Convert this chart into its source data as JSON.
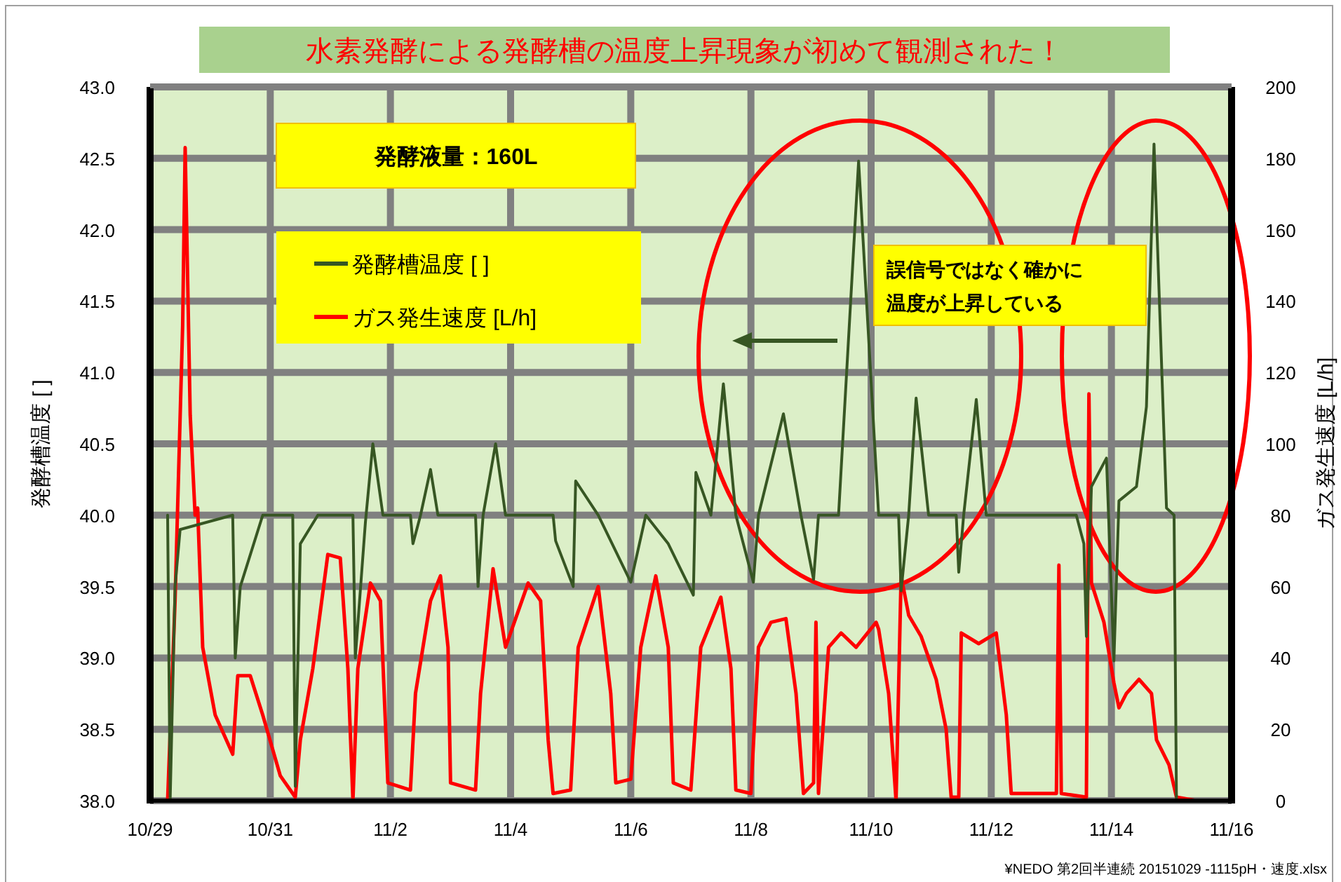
{
  "chart_data": {
    "type": "line",
    "title": "水素発酵による発酵槽の温度上昇現象が初めて観測された！",
    "ylabel": "発酵槽温度 [ ]",
    "y2label": "ガス発生速度 [L/h]",
    "annotations": [
      "発酵液量：160L",
      "誤信号ではなく確かに温度が上昇している",
      "¥NEDO 第2回半連続 20151029 -1115pH・速度.xlsx"
    ],
    "xlim": [
      "2015-10-29",
      "2015-11-16"
    ],
    "xticks": [
      {
        "value": "2015-10-29",
        "label": "10/29"
      },
      {
        "value": "2015-10-31",
        "label": "10/31"
      },
      {
        "value": "2015-11-02",
        "label": "11/2"
      },
      {
        "value": "2015-11-04",
        "label": "11/4"
      },
      {
        "value": "2015-11-06",
        "label": "11/6"
      },
      {
        "value": "2015-11-08",
        "label": "11/8"
      },
      {
        "value": "2015-11-10",
        "label": "11/10"
      },
      {
        "value": "2015-11-12",
        "label": "11/12"
      },
      {
        "value": "2015-11-14",
        "label": "11/14"
      },
      {
        "value": "2015-11-16",
        "label": "11/16"
      }
    ],
    "ylim": [
      38,
      43
    ],
    "yticks": [
      {
        "value": 38,
        "label": "38.0"
      },
      {
        "value": 38.5,
        "label": "38.5"
      },
      {
        "value": 39,
        "label": "39.0"
      },
      {
        "value": 39.5,
        "label": "39.5"
      },
      {
        "value": 40,
        "label": "40.0"
      },
      {
        "value": 40.5,
        "label": "40.5"
      },
      {
        "value": 41,
        "label": "41.0"
      },
      {
        "value": 41.5,
        "label": "41.5"
      },
      {
        "value": 42,
        "label": "42.0"
      },
      {
        "value": 42.5,
        "label": "42.5"
      },
      {
        "value": 43,
        "label": "43.0"
      }
    ],
    "y2lim": [
      0,
      200
    ],
    "y2ticks": [
      0,
      20,
      40,
      60,
      80,
      100,
      120,
      140,
      160,
      180,
      200
    ],
    "grid": true,
    "legend": "top left",
    "series": [
      {
        "name": "発酵槽温度 [ ]",
        "color": "#375623",
        "x": [
          "2015-10-29T07:00",
          "2015-10-29T08:00",
          "2015-10-29T10:00",
          "2015-10-29T12:00",
          "2015-10-30T09:00",
          "2015-10-30T10:00",
          "2015-10-30T12:00",
          "2015-10-30T21:00",
          "2015-10-31T09:00",
          "2015-10-31T10:00",
          "2015-10-31T12:00",
          "2015-10-31T19:00",
          "2015-11-01T09:00",
          "2015-11-01T10:00",
          "2015-11-01T14:00",
          "2015-11-01T17:00",
          "2015-11-01T21:00",
          "2015-11-02T08:00",
          "2015-11-02T09:00",
          "2015-11-02T12:00",
          "2015-11-02T16:00",
          "2015-11-02T19:00",
          "2015-11-03T10:00",
          "2015-11-03T11:00",
          "2015-11-03T13:00",
          "2015-11-03T18:00",
          "2015-11-03T22:00",
          "2015-11-04T17:00",
          "2015-11-04T18:00",
          "2015-11-05T01:00",
          "2015-11-05T02:00",
          "2015-11-05T11:00",
          "2015-11-06T00:00",
          "2015-11-06T06:00",
          "2015-11-06T15:00",
          "2015-11-07T01:00",
          "2015-11-07T02:00",
          "2015-11-07T08:00",
          "2015-11-07T13:00",
          "2015-11-07T18:00",
          "2015-11-08T01:00",
          "2015-11-08T03:00",
          "2015-11-08T13:00",
          "2015-11-08T20:00",
          "2015-11-09T01:00",
          "2015-11-09T03:00",
          "2015-11-09T11:00",
          "2015-11-09T19:00",
          "2015-11-10T03:00",
          "2015-11-10T11:00",
          "2015-11-10T12:00",
          "2015-11-10T15:00",
          "2015-11-10T18:00",
          "2015-11-10T23:00",
          "2015-11-11T10:00",
          "2015-11-11T11:00",
          "2015-11-11T13:00",
          "2015-11-11T18:00",
          "2015-11-11T22:00",
          "2015-11-13T10:00",
          "2015-11-13T13:00",
          "2015-11-13T14:00",
          "2015-11-13T16:00",
          "2015-11-13T22:00",
          "2015-11-14T01:00",
          "2015-11-14T03:00",
          "2015-11-14T10:00",
          "2015-11-14T14:00",
          "2015-11-14T17:00",
          "2015-11-14T22:00",
          "2015-11-15T01:00",
          "2015-11-15T02:00"
        ],
        "values": [
          40.0,
          38.0,
          39.5,
          39.9,
          40.0,
          39.0,
          39.5,
          40.0,
          40.0,
          38.1,
          39.8,
          40.0,
          40.0,
          39.0,
          39.95,
          40.5,
          40.0,
          40.0,
          39.8,
          40.0,
          40.32,
          40.0,
          40.0,
          39.5,
          40.0,
          40.5,
          40.0,
          40.0,
          39.82,
          39.5,
          40.24,
          40.0,
          39.53,
          40.0,
          39.8,
          39.44,
          40.3,
          40.0,
          40.92,
          40.0,
          39.53,
          40.0,
          40.71,
          40.0,
          39.55,
          40.0,
          40.0,
          42.48,
          40.0,
          40.0,
          39.47,
          40.0,
          40.82,
          40.0,
          40.0,
          39.6,
          40.0,
          40.81,
          40.0,
          40.0,
          39.8,
          39.15,
          40.2,
          40.4,
          38.98,
          40.1,
          40.2,
          40.76,
          42.6,
          40.05,
          40.0,
          38.0
        ]
      },
      {
        "name": "ガス発生速度 [L/h]",
        "color": "#ff0000",
        "axis": "y2",
        "x": [
          "2015-10-29T07:00",
          "2015-10-29T10:00",
          "2015-10-29T13:00",
          "2015-10-29T14:00",
          "2015-10-29T16:00",
          "2015-10-29T18:00",
          "2015-10-29T19:00",
          "2015-10-29T21:00",
          "2015-10-30T02:00",
          "2015-10-30T09:00",
          "2015-10-30T11:00",
          "2015-10-30T16:00",
          "2015-10-30T21:00",
          "2015-10-31T04:00",
          "2015-10-31T10:00",
          "2015-10-31T12:00",
          "2015-10-31T17:00",
          "2015-10-31T23:00",
          "2015-11-01T04:00",
          "2015-11-01T07:00",
          "2015-11-01T09:00",
          "2015-11-01T11:00",
          "2015-11-01T16:00",
          "2015-11-01T20:00",
          "2015-11-01T23:00",
          "2015-11-02T08:00",
          "2015-11-02T10:00",
          "2015-11-02T16:00",
          "2015-11-02T20:00",
          "2015-11-02T23:00",
          "2015-11-03T00:00",
          "2015-11-03T10:00",
          "2015-11-03T12:00",
          "2015-11-03T17:00",
          "2015-11-03T22:00",
          "2015-11-04T07:00",
          "2015-11-04T12:00",
          "2015-11-04T15:00",
          "2015-11-04T17:00",
          "2015-11-05T00:00",
          "2015-11-05T03:00",
          "2015-11-05T11:00",
          "2015-11-05T16:00",
          "2015-11-05T18:00",
          "2015-11-06T00:00",
          "2015-11-06T04:00",
          "2015-11-06T10:00",
          "2015-11-06T15:00",
          "2015-11-06T17:00",
          "2015-11-07T00:00",
          "2015-11-07T04:00",
          "2015-11-07T12:00",
          "2015-11-07T16:00",
          "2015-11-07T18:00",
          "2015-11-08T00:00",
          "2015-11-08T03:00",
          "2015-11-08T08:00",
          "2015-11-08T14:00",
          "2015-11-08T18:00",
          "2015-11-08T21:00",
          "2015-11-09T01:00",
          "2015-11-09T02:00",
          "2015-11-09T03:00",
          "2015-11-09T07:00",
          "2015-11-09T12:00",
          "2015-11-09T18:00",
          "2015-11-10T02:00",
          "2015-11-10T03:00",
          "2015-11-10T07:00",
          "2015-11-10T10:00",
          "2015-11-10T12:00",
          "2015-11-10T15:00",
          "2015-11-10T20:00",
          "2015-11-11T02:00",
          "2015-11-11T06:00",
          "2015-11-11T08:00",
          "2015-11-11T11:00",
          "2015-11-11T12:00",
          "2015-11-11T19:00",
          "2015-11-12T02:00",
          "2015-11-12T06:00",
          "2015-11-12T08:00",
          "2015-11-13T02:00",
          "2015-11-13T03:00",
          "2015-11-13T04:00",
          "2015-11-13T14:00",
          "2015-11-13T15:00",
          "2015-11-13T16:00",
          "2015-11-13T21:00",
          "2015-11-14T01:00",
          "2015-11-14T03:00",
          "2015-11-14T06:00",
          "2015-11-14T11:00",
          "2015-11-14T16:00",
          "2015-11-14T18:00",
          "2015-11-14T23:00",
          "2015-11-15T02:00",
          "2015-11-15T10:00"
        ],
        "values": [
          0,
          56,
          133,
          183,
          108,
          80,
          82,
          43,
          24,
          13,
          35,
          35,
          24,
          7,
          1,
          17,
          37,
          69,
          68,
          37,
          0,
          37,
          61,
          56,
          5,
          3,
          30,
          56,
          63,
          43,
          5,
          3,
          30,
          65,
          43,
          61,
          56,
          17,
          2,
          3,
          43,
          60,
          30,
          5,
          6,
          43,
          63,
          43,
          5,
          3,
          43,
          57,
          37,
          3,
          2,
          43,
          50,
          51,
          30,
          2,
          5,
          50,
          2,
          43,
          47,
          43,
          50,
          48,
          30,
          0,
          63,
          52,
          46,
          34,
          20,
          1,
          1,
          47,
          44,
          47,
          24,
          2,
          2,
          66,
          2,
          1,
          114,
          61,
          50,
          33,
          26,
          30,
          34,
          30,
          17,
          10,
          1,
          0
        ]
      }
    ]
  }
}
